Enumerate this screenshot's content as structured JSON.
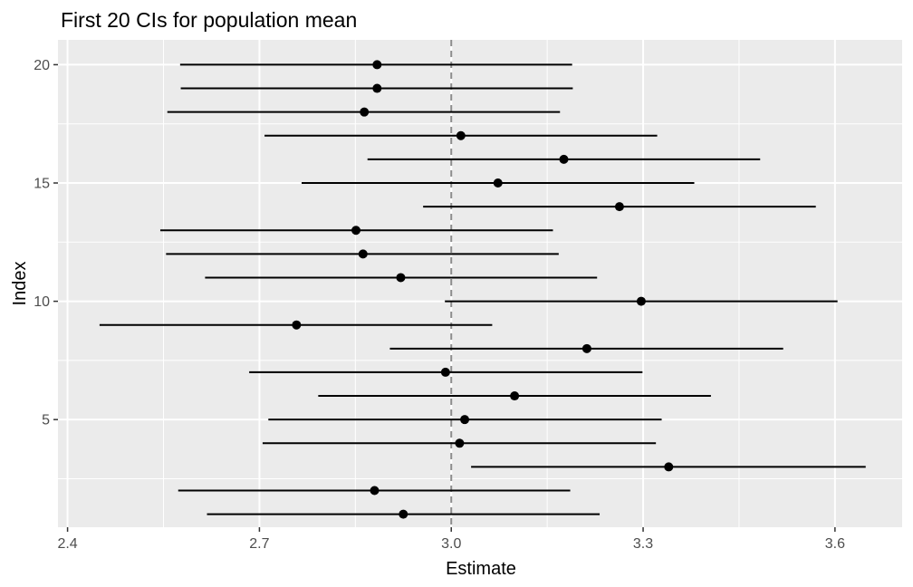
{
  "chart_data": {
    "type": "scatter",
    "subtype": "interval-plot",
    "title": "First 20 CIs for population mean",
    "xlabel": "Estimate",
    "ylabel": "Index",
    "xlim": [
      2.385,
      3.705
    ],
    "ylim": [
      0.45,
      21.05
    ],
    "x_ticks": [
      2.4,
      2.7,
      3.0,
      3.3,
      3.6
    ],
    "x_tick_labels": [
      "2.4",
      "2.7",
      "3.0",
      "3.3",
      "3.6"
    ],
    "y_ticks": [
      5,
      10,
      15,
      20
    ],
    "y_tick_labels": [
      "5",
      "10",
      "15",
      "20"
    ],
    "reference_line": {
      "x": 3.0,
      "style": "dashed",
      "color": "#8c8c8c"
    },
    "grid": true,
    "panel_background": "#ebebeb",
    "point_color": "#000000",
    "intervals": [
      {
        "index": 1,
        "estimate": 2.925,
        "lower": 2.618,
        "upper": 3.232
      },
      {
        "index": 2,
        "estimate": 2.88,
        "lower": 2.573,
        "upper": 3.186
      },
      {
        "index": 3,
        "estimate": 3.34,
        "lower": 3.031,
        "upper": 3.648
      },
      {
        "index": 4,
        "estimate": 3.013,
        "lower": 2.705,
        "upper": 3.32
      },
      {
        "index": 5,
        "estimate": 3.021,
        "lower": 2.714,
        "upper": 3.329
      },
      {
        "index": 6,
        "estimate": 3.099,
        "lower": 2.792,
        "upper": 3.406
      },
      {
        "index": 7,
        "estimate": 2.991,
        "lower": 2.684,
        "upper": 3.299
      },
      {
        "index": 8,
        "estimate": 3.212,
        "lower": 2.904,
        "upper": 3.519
      },
      {
        "index": 9,
        "estimate": 2.758,
        "lower": 2.45,
        "upper": 3.064
      },
      {
        "index": 10,
        "estimate": 3.297,
        "lower": 2.99,
        "upper": 3.604
      },
      {
        "index": 11,
        "estimate": 2.921,
        "lower": 2.615,
        "upper": 3.228
      },
      {
        "index": 12,
        "estimate": 2.862,
        "lower": 2.554,
        "upper": 3.168
      },
      {
        "index": 13,
        "estimate": 2.851,
        "lower": 2.545,
        "upper": 3.159
      },
      {
        "index": 14,
        "estimate": 3.263,
        "lower": 2.956,
        "upper": 3.57
      },
      {
        "index": 15,
        "estimate": 3.073,
        "lower": 2.766,
        "upper": 3.38
      },
      {
        "index": 16,
        "estimate": 3.176,
        "lower": 2.869,
        "upper": 3.483
      },
      {
        "index": 17,
        "estimate": 3.015,
        "lower": 2.708,
        "upper": 3.322
      },
      {
        "index": 18,
        "estimate": 2.864,
        "lower": 2.556,
        "upper": 3.17
      },
      {
        "index": 19,
        "estimate": 2.884,
        "lower": 2.577,
        "upper": 3.19
      },
      {
        "index": 20,
        "estimate": 2.884,
        "lower": 2.576,
        "upper": 3.189
      }
    ]
  }
}
